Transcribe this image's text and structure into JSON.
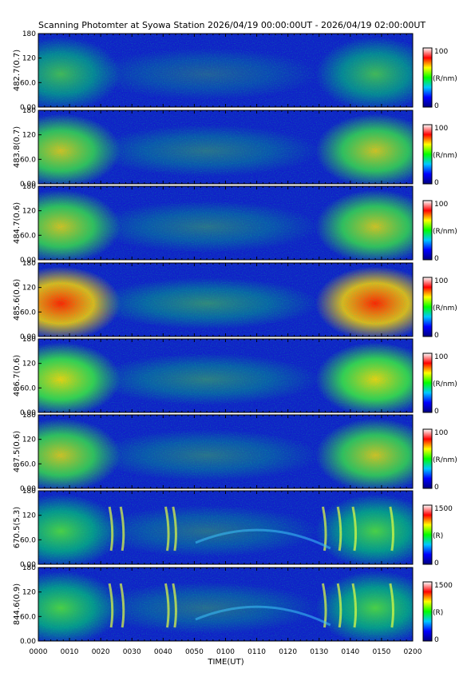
{
  "title": "Scanning Photomter at Syowa Station 2026/04/19 00:00:00UT - 2026/04/19 02:00:00UT",
  "chart_data": {
    "type": "heatmap",
    "xlabel": "TIME(UT)",
    "x_ticks": [
      "0000",
      "0010",
      "0020",
      "0030",
      "0040",
      "0050",
      "0100",
      "0110",
      "0120",
      "0130",
      "0140",
      "0150",
      "0200"
    ],
    "y_ticks": [
      "0.00",
      "60.0",
      "120",
      "180"
    ],
    "ylim": [
      0,
      180
    ],
    "colormap": [
      "#000080",
      "#0000ff",
      "#00c8ff",
      "#00ff00",
      "#ffff00",
      "#ff0000",
      "#ffffff"
    ],
    "panels": [
      {
        "ylabel": "482.7(0.7)",
        "unit": "(R/nm)",
        "cmin": "0",
        "cmax": "100"
      },
      {
        "ylabel": "483.8(0.7)",
        "unit": "(R/nm)",
        "cmin": "0",
        "cmax": "100"
      },
      {
        "ylabel": "484.7(0.6)",
        "unit": "(R/nm)",
        "cmin": "0",
        "cmax": "100"
      },
      {
        "ylabel": "485.6(0.6)",
        "unit": "(R/nm)",
        "cmin": "0",
        "cmax": "100"
      },
      {
        "ylabel": "486.7(0.6)",
        "unit": "(R/nm)",
        "cmin": "0",
        "cmax": "100"
      },
      {
        "ylabel": "487.5(0.6)",
        "unit": "(R/nm)",
        "cmin": "0",
        "cmax": "100"
      },
      {
        "ylabel": "670.5(5.3)",
        "unit": "(R)",
        "cmin": "0",
        "cmax": "1500"
      },
      {
        "ylabel": "844.6(0.9)",
        "unit": "(R)",
        "cmin": "0",
        "cmax": "1500"
      }
    ]
  }
}
